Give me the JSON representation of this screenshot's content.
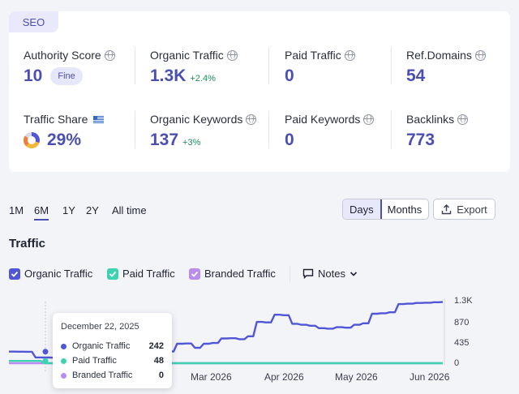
{
  "seo_tag": "SEO",
  "metrics": [
    {
      "label": "Authority Score",
      "value": "10",
      "badge": "Fine",
      "delta": ""
    },
    {
      "label": "Organic Traffic",
      "value": "1.3K",
      "badge": "",
      "delta": "+2.4%"
    },
    {
      "label": "Paid Traffic",
      "value": "0",
      "badge": "",
      "delta": ""
    },
    {
      "label": "Ref.Domains",
      "value": "54",
      "badge": "",
      "delta": ""
    },
    {
      "label": "Traffic Share",
      "value": "29%",
      "badge": "",
      "delta": ""
    },
    {
      "label": "Organic Keywords",
      "value": "137",
      "badge": "",
      "delta": "+3%"
    },
    {
      "label": "Paid Keywords",
      "value": "0",
      "badge": "",
      "delta": ""
    },
    {
      "label": "Backlinks",
      "value": "773",
      "badge": "",
      "delta": ""
    }
  ],
  "range_tabs": [
    "1M",
    "6M",
    "1Y",
    "2Y",
    "All time"
  ],
  "active_range": "6M",
  "granularity": {
    "days": "Days",
    "months": "Months",
    "active": "Days"
  },
  "export_label": "Export",
  "chart_title": "Traffic",
  "legend": [
    {
      "label": "Organic Traffic",
      "color": "#5156d6",
      "checked": true
    },
    {
      "label": "Paid Traffic",
      "color": "#3ed3b0",
      "checked": true
    },
    {
      "label": "Branded Traffic",
      "color": "#b98cf0",
      "checked": true
    }
  ],
  "notes_label": "Notes",
  "tooltip": {
    "date": "December 22, 2025",
    "rows": [
      {
        "label": "Organic Traffic",
        "value": "242",
        "color": "#5156d6"
      },
      {
        "label": "Paid Traffic",
        "value": "48",
        "color": "#3ed3b0"
      },
      {
        "label": "Branded Traffic",
        "value": "0",
        "color": "#b98cf0"
      }
    ]
  },
  "chart_data": {
    "type": "line",
    "x_tick_labels": [
      "Mar 2026",
      "Apr 2026",
      "May 2026",
      "Jun 2026"
    ],
    "y_ticks": [
      "1.3K",
      "870",
      "435",
      "0"
    ],
    "ylim": [
      0,
      1300
    ],
    "series": [
      {
        "name": "Organic Traffic",
        "color": "#5156d6",
        "values": [
          242,
          240,
          238,
          120,
          118,
          115,
          110,
          112,
          110,
          108,
          110,
          112,
          110,
          108,
          110,
          112,
          115,
          240,
          245,
          405,
          410,
          320,
          405,
          420,
          515,
          520,
          500,
          560,
          860,
          850,
          1010,
          1000,
          820,
          800,
          780,
          730,
          720,
          750,
          740,
          800,
          830,
          1030,
          1040,
          1060,
          1230,
          1240,
          1255,
          1260,
          1270,
          1275
        ]
      },
      {
        "name": "Paid Traffic",
        "color": "#3ed3b0",
        "values": [
          48,
          48,
          48,
          48,
          0,
          0,
          0,
          0,
          0,
          0,
          0,
          0,
          0,
          0,
          0,
          0,
          0,
          0,
          0,
          0,
          0,
          0,
          0,
          0,
          0,
          0,
          0,
          0,
          0,
          0,
          0,
          0,
          0,
          0,
          0,
          0,
          0,
          0,
          0,
          0,
          0,
          0,
          0,
          0,
          0,
          0,
          0,
          0,
          0,
          0
        ]
      },
      {
        "name": "Branded Traffic",
        "color": "#b98cf0",
        "values": [
          0,
          0,
          0,
          0,
          0,
          0,
          0,
          0,
          0,
          0,
          0,
          0,
          0,
          0,
          0,
          0,
          0,
          0,
          0,
          0,
          0,
          0,
          0,
          0,
          0,
          0,
          0,
          0,
          0,
          0,
          0,
          0,
          0,
          0,
          0,
          0,
          0,
          0,
          0,
          0,
          0,
          0,
          0,
          0,
          0,
          0,
          0,
          0,
          0,
          0
        ]
      }
    ],
    "grid": false
  }
}
